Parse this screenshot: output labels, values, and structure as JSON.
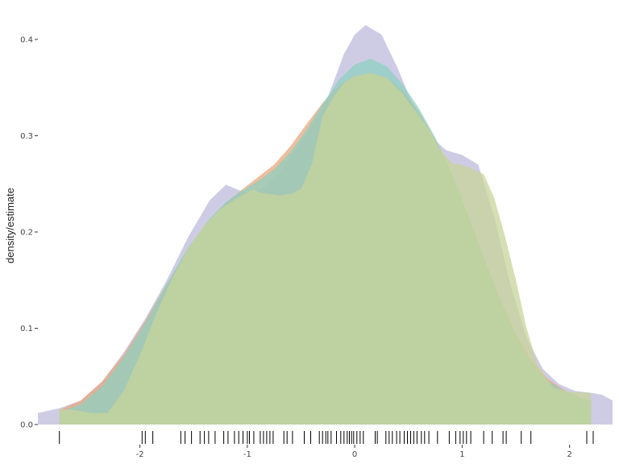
{
  "chart_data": {
    "type": "area",
    "title": "",
    "xlabel": "",
    "ylabel": "density/estimate",
    "xlim": [
      -2.95,
      2.4
    ],
    "ylim": [
      0,
      0.4
    ],
    "x_ticks": [
      -2,
      -1,
      0,
      1,
      2
    ],
    "x_tick_labels": [
      "-2",
      "-1",
      "0",
      "1",
      "2"
    ],
    "y_ticks": [
      0.0,
      0.1,
      0.2,
      0.3,
      0.4
    ],
    "y_tick_labels": [
      "0.0",
      "0.1",
      "0.2",
      "0.3",
      "0.4"
    ],
    "grid": false,
    "legend": "none",
    "series": [
      {
        "color": "#b9b6da",
        "opacity": 0.7,
        "x": [
          -2.95,
          -2.75,
          -2.55,
          -2.35,
          -2.15,
          -1.95,
          -1.75,
          -1.55,
          -1.35,
          -1.2,
          -1.0,
          -0.85,
          -0.7,
          -0.55,
          -0.4,
          -0.25,
          -0.1,
          0.0,
          0.1,
          0.25,
          0.4,
          0.55,
          0.7,
          0.85,
          1.0,
          1.15,
          1.3,
          1.45,
          1.6,
          1.75,
          1.9,
          2.05,
          2.2,
          2.3,
          2.4
        ],
        "y": [
          0.012,
          0.017,
          0.025,
          0.045,
          0.075,
          0.11,
          0.15,
          0.195,
          0.233,
          0.249,
          0.24,
          0.246,
          0.262,
          0.285,
          0.31,
          0.34,
          0.385,
          0.405,
          0.415,
          0.405,
          0.37,
          0.33,
          0.3,
          0.285,
          0.28,
          0.27,
          0.215,
          0.145,
          0.09,
          0.058,
          0.042,
          0.035,
          0.033,
          0.031,
          0.025
        ]
      },
      {
        "color": "#e8a77c",
        "opacity": 0.75,
        "x": [
          -2.75,
          -2.55,
          -2.35,
          -2.15,
          -1.95,
          -1.75,
          -1.55,
          -1.35,
          -1.2,
          -1.05,
          -0.9,
          -0.75,
          -0.6,
          -0.45,
          -0.3,
          -0.15,
          0.0,
          0.15,
          0.3,
          0.45,
          0.6,
          0.75,
          0.9,
          1.05,
          1.2,
          1.35,
          1.5,
          1.65,
          1.8,
          1.95,
          2.1,
          2.2
        ],
        "y": [
          0.015,
          0.025,
          0.045,
          0.073,
          0.108,
          0.146,
          0.182,
          0.212,
          0.23,
          0.244,
          0.257,
          0.27,
          0.289,
          0.312,
          0.334,
          0.352,
          0.362,
          0.365,
          0.36,
          0.346,
          0.325,
          0.296,
          0.26,
          0.218,
          0.174,
          0.131,
          0.094,
          0.066,
          0.047,
          0.036,
          0.028,
          0.025
        ]
      },
      {
        "color": "#8fd0c0",
        "opacity": 0.75,
        "x": [
          -2.75,
          -2.55,
          -2.35,
          -2.15,
          -1.95,
          -1.75,
          -1.55,
          -1.35,
          -1.2,
          -1.05,
          -0.9,
          -0.75,
          -0.6,
          -0.45,
          -0.3,
          -0.15,
          0.0,
          0.15,
          0.3,
          0.45,
          0.6,
          0.75,
          0.9,
          1.05,
          1.2,
          1.35,
          1.5,
          1.65,
          1.8,
          1.95,
          2.1,
          2.2
        ],
        "y": [
          0.013,
          0.021,
          0.04,
          0.07,
          0.106,
          0.146,
          0.184,
          0.214,
          0.231,
          0.243,
          0.253,
          0.265,
          0.283,
          0.306,
          0.333,
          0.358,
          0.374,
          0.38,
          0.372,
          0.353,
          0.328,
          0.298,
          0.262,
          0.219,
          0.173,
          0.13,
          0.092,
          0.063,
          0.045,
          0.035,
          0.028,
          0.025
        ]
      },
      {
        "color": "#c7d49a",
        "opacity": 0.75,
        "x": [
          -2.75,
          -2.6,
          -2.45,
          -2.3,
          -2.15,
          -2.0,
          -1.85,
          -1.7,
          -1.55,
          -1.4,
          -1.25,
          -1.1,
          -0.95,
          -0.85,
          -0.7,
          -0.58,
          -0.5,
          -0.4,
          -0.3,
          -0.2,
          -0.1,
          0.0,
          0.15,
          0.3,
          0.45,
          0.6,
          0.7,
          0.8,
          0.9,
          1.05,
          1.2,
          1.3,
          1.4,
          1.5,
          1.6,
          1.7,
          1.85,
          2.0,
          2.2
        ],
        "y": [
          0.016,
          0.015,
          0.012,
          0.012,
          0.035,
          0.072,
          0.115,
          0.152,
          0.183,
          0.207,
          0.224,
          0.235,
          0.244,
          0.24,
          0.238,
          0.24,
          0.245,
          0.27,
          0.32,
          0.34,
          0.355,
          0.362,
          0.365,
          0.36,
          0.343,
          0.32,
          0.305,
          0.285,
          0.272,
          0.268,
          0.26,
          0.235,
          0.195,
          0.15,
          0.1,
          0.062,
          0.038,
          0.034,
          0.033
        ]
      }
    ],
    "rug": [
      -2.75,
      -1.98,
      -1.95,
      -1.88,
      -1.62,
      -1.58,
      -1.52,
      -1.44,
      -1.4,
      -1.36,
      -1.3,
      -1.22,
      -1.18,
      -1.12,
      -1.08,
      -1.04,
      -1.0,
      -0.98,
      -0.94,
      -0.88,
      -0.85,
      -0.82,
      -0.79,
      -0.76,
      -0.66,
      -0.63,
      -0.58,
      -0.47,
      -0.41,
      -0.33,
      -0.3,
      -0.27,
      -0.25,
      -0.22,
      -0.17,
      -0.13,
      -0.1,
      -0.07,
      -0.05,
      -0.03,
      -0.01,
      0.02,
      0.05,
      0.08,
      0.19,
      0.21,
      0.29,
      0.32,
      0.35,
      0.39,
      0.42,
      0.46,
      0.49,
      0.52,
      0.55,
      0.58,
      0.62,
      0.65,
      0.69,
      0.77,
      0.88,
      0.94,
      0.98,
      1.01,
      1.04,
      1.08,
      1.2,
      1.28,
      1.38,
      1.41,
      1.55,
      1.64,
      2.16,
      2.22
    ],
    "rug_color": "#000000"
  }
}
